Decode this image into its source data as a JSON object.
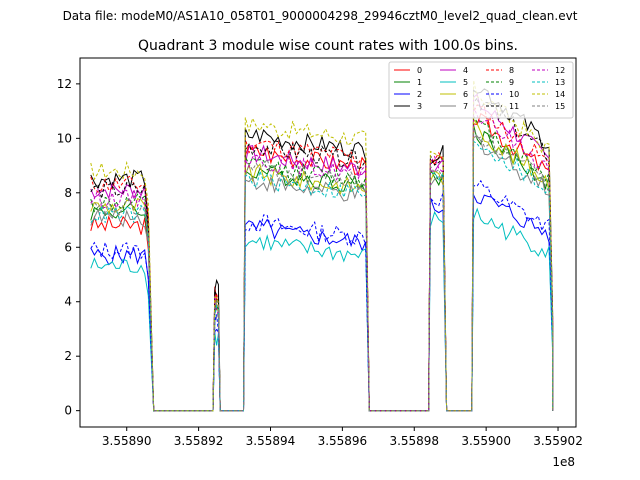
{
  "header": {
    "data_file": "Data file: modeM0/AS1A10_058T01_9000004298_29946cztM0_level2_quad_clean.evt"
  },
  "chart_data": {
    "type": "line",
    "title": "Quadrant 3 module wise count rates with 100.0s bins.",
    "xlabel": "",
    "ylabel": "",
    "x_offset_label": "1e8",
    "xlim": [
      3.558887,
      3.559025
    ],
    "ylim": [
      -0.6,
      12.95
    ],
    "x_ticks": [
      3.5589,
      3.55892,
      3.55894,
      3.55896,
      3.55898,
      3.559,
      3.55902
    ],
    "x_tick_labels": [
      "3.55890",
      "3.55892",
      "3.55894",
      "3.55896",
      "3.55898",
      "3.55900",
      "3.55902"
    ],
    "y_ticks": [
      0,
      2,
      4,
      6,
      8,
      10,
      12
    ],
    "y_tick_labels": [
      "0",
      "2",
      "4",
      "6",
      "8",
      "10",
      "12"
    ],
    "grid": false,
    "legend_position": "top-right",
    "bin_size_s": 100,
    "segments": [
      {
        "start": 3.55889,
        "end": 3.558906,
        "drop_to": 3.5589075
      },
      {
        "start": 3.5589245,
        "end": 3.5589255,
        "drop_to": 3.558926
      },
      {
        "start": 3.558933,
        "end": 3.5589665,
        "drop_to": 3.5589675
      },
      {
        "start": 3.5589845,
        "end": 3.558988,
        "drop_to": 3.558989
      },
      {
        "start": 3.5589965,
        "end": 3.5590185,
        "drop_to": 3.5590185
      }
    ],
    "series": [
      {
        "name": "0",
        "color": "#ff0000",
        "dash": "solid",
        "levels": [
          6.8,
          4.3,
          9.5,
          9.0,
          10.8
        ]
      },
      {
        "name": "1",
        "color": "#008000",
        "dash": "solid",
        "levels": [
          7.3,
          3.9,
          8.8,
          8.6,
          10.3
        ]
      },
      {
        "name": "2",
        "color": "#0000ff",
        "dash": "solid",
        "levels": [
          5.7,
          3.1,
          6.7,
          7.5,
          8.0
        ]
      },
      {
        "name": "3",
        "color": "#000000",
        "dash": "solid",
        "levels": [
          8.5,
          4.5,
          10.1,
          9.4,
          12.1
        ]
      },
      {
        "name": "4",
        "color": "#bf00bf",
        "dash": "solid",
        "levels": [
          8.1,
          3.9,
          9.4,
          9.1,
          11.4
        ]
      },
      {
        "name": "5",
        "color": "#00bfbf",
        "dash": "solid",
        "levels": [
          5.3,
          2.7,
          6.2,
          7.0,
          7.2
        ]
      },
      {
        "name": "6",
        "color": "#bfbf00",
        "dash": "solid",
        "levels": [
          7.5,
          3.8,
          8.7,
          8.6,
          10.4
        ]
      },
      {
        "name": "7",
        "color": "#808080",
        "dash": "solid",
        "levels": [
          7.1,
          3.6,
          8.4,
          8.4,
          10.0
        ]
      },
      {
        "name": "8",
        "color": "#ff0000",
        "dash": "dashed",
        "levels": [
          8.3,
          4.1,
          9.8,
          9.2,
          11.2
        ]
      },
      {
        "name": "9",
        "color": "#008000",
        "dash": "dashed",
        "levels": [
          7.6,
          3.8,
          9.0,
          8.8,
          10.6
        ]
      },
      {
        "name": "10",
        "color": "#0000ff",
        "dash": "dashed",
        "levels": [
          5.9,
          3.2,
          6.9,
          7.8,
          8.3
        ]
      },
      {
        "name": "11",
        "color": "#000000",
        "dash": "dashed",
        "levels": [
          8.1,
          4.2,
          9.7,
          9.3,
          11.6
        ]
      },
      {
        "name": "12",
        "color": "#bf00bf",
        "dash": "dashed",
        "levels": [
          7.8,
          3.9,
          9.2,
          9.0,
          11.0
        ]
      },
      {
        "name": "13",
        "color": "#00bfbf",
        "dash": "dashed",
        "levels": [
          7.2,
          3.7,
          8.5,
          8.5,
          10.0
        ]
      },
      {
        "name": "14",
        "color": "#bfbf00",
        "dash": "dashed",
        "levels": [
          8.8,
          4.3,
          10.5,
          9.3,
          11.8
        ]
      },
      {
        "name": "15",
        "color": "#808080",
        "dash": "dashed",
        "levels": [
          7.4,
          3.8,
          8.9,
          8.7,
          10.3
        ]
      }
    ]
  }
}
